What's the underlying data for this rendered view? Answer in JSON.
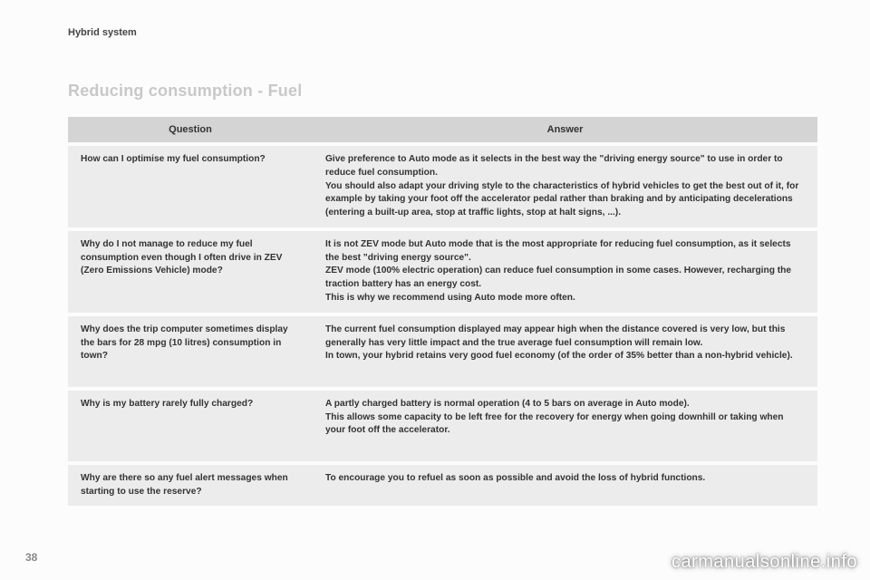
{
  "header": "Hybrid system",
  "title": "Reducing consumption - Fuel",
  "page_number": "38",
  "watermark": "carmanualsonline.info",
  "table": {
    "columns": {
      "q": "Question",
      "a": "Answer"
    },
    "rows": [
      {
        "q": "How can I optimise my fuel consumption?",
        "a": "Give preference to Auto mode as it selects in the best way the \"driving energy source\" to use in order to reduce fuel consumption.\nYou should also adapt your driving style to the characteristics of hybrid vehicles to get the best out of it, for example by taking your foot off the accelerator pedal rather than braking and by anticipating decelerations (entering a built-up area, stop at traffic lights, stop at halt signs, ...)."
      },
      {
        "q": "Why do I not manage to reduce my fuel consumption even though I often drive in ZEV (Zero Emissions Vehicle) mode?",
        "a": "It is not ZEV mode but Auto mode that is the most appropriate for reducing fuel consumption, as it selects the best \"driving energy source\".\nZEV mode (100% electric operation) can reduce fuel consumption in some cases. However, recharging the traction battery has an energy cost.\nThis is why we recommend using Auto mode more often."
      },
      {
        "q": "Why does the trip computer sometimes display the bars for 28 mpg (10 litres) consumption in town?",
        "a": "The current fuel consumption displayed may appear high when the distance covered is very low, but this generally has very little impact and the true average fuel consumption will remain low.\nIn town, your hybrid retains very good fuel economy (of the order of 35% better than a non-hybrid vehicle)."
      },
      {
        "q": "Why is my battery rarely fully charged?",
        "a": "A partly charged battery is normal operation (4 to 5 bars on average in Auto mode).\nThis allows some capacity to be left free for the recovery for energy when going downhill or taking when your foot off the accelerator."
      },
      {
        "q": "Why are there so any fuel alert messages when starting to use the reserve?",
        "a": "To encourage you to refuel as soon as possible and avoid the loss of hybrid functions."
      }
    ]
  }
}
